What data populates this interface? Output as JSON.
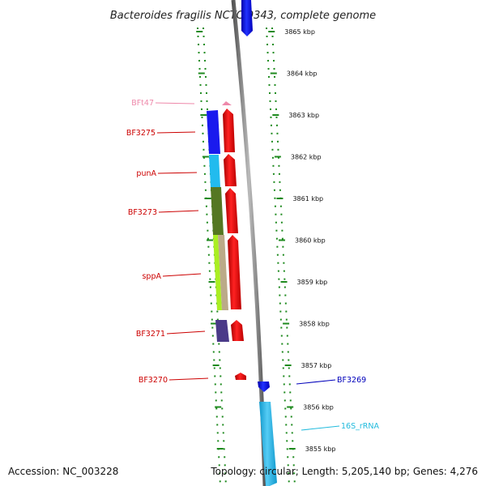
{
  "header": {
    "title": "Bacteroides fragilis NCTC 9343, complete genome"
  },
  "footer": {
    "accession": "Accession: NC_003228",
    "topology": "Topology: circular; Length: 5,205,140 bp; Genes: 4,276"
  },
  "ruler": {
    "ticks": [
      "3865 kbp",
      "3864 kbp",
      "3863 kbp",
      "3862 kbp",
      "3861 kbp",
      "3860 kbp",
      "3859 kbp",
      "3858 kbp",
      "3857 kbp",
      "3856 kbp",
      "3855 kbp"
    ]
  },
  "colors": {
    "ruler": "#1e8a1e",
    "backbone": "#7a7a7a",
    "reverse_strand_arrow": "#ee1111",
    "forward_strand_arrow": "#1111dd",
    "rrna": "#33bbee"
  },
  "left_labels": [
    {
      "text": "BFt47",
      "color": "#ee88aa"
    },
    {
      "text": "BF3275",
      "color": "#cc0000"
    },
    {
      "text": "punA",
      "color": "#cc0000"
    },
    {
      "text": "BF3273",
      "color": "#cc0000"
    },
    {
      "text": "sppA",
      "color": "#cc0000"
    },
    {
      "text": "BF3271",
      "color": "#cc0000"
    },
    {
      "text": "BF3270",
      "color": "#cc0000"
    }
  ],
  "right_labels": [
    {
      "text": "BF3269",
      "color": "#0000bb"
    },
    {
      "text": "16S_rRNA",
      "color": "#22bbdd"
    }
  ],
  "category_blocks": [
    {
      "name": "cog-block-bf3275",
      "color": "#1a1aee"
    },
    {
      "name": "cog-block-puna",
      "color": "#22bbee"
    },
    {
      "name": "cog-block-bf3273",
      "color": "#557722"
    },
    {
      "name": "cog-block-sppa-1",
      "color": "#aaee22"
    },
    {
      "name": "cog-block-sppa-2",
      "color": "#bbaa88"
    },
    {
      "name": "cog-block-bf3271",
      "color": "#4a3a88"
    }
  ]
}
